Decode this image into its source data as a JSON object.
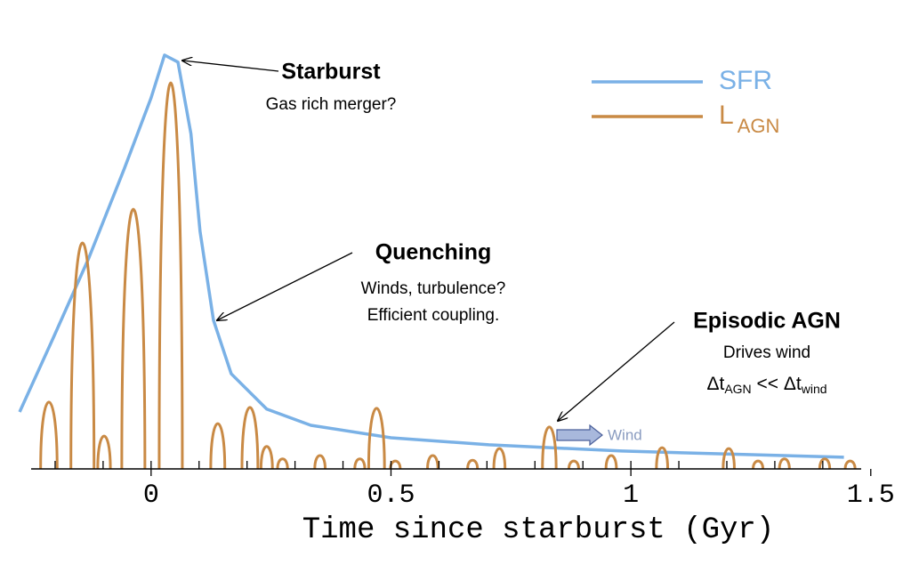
{
  "chart_data": {
    "type": "line",
    "xlabel": "Time since starburst (Gyr)",
    "xlim": [
      -0.25,
      1.48
    ],
    "ylim": [
      0,
      1
    ],
    "xticks": [
      0,
      0.5,
      1,
      1.5
    ],
    "xminor_ticks": [
      -0.2,
      -0.1,
      0,
      0.1,
      0.2,
      0.3,
      0.4,
      0.5,
      0.6,
      0.7,
      0.8,
      0.9,
      1,
      1.1,
      1.2,
      1.3,
      1.4
    ],
    "series": [
      {
        "name": "SFR",
        "color": "#7ab1e6",
        "x": [
          -0.274,
          -0.204,
          -0.13,
          -0.056,
          0,
          0.028,
          0.056,
          0.083,
          0.102,
          0.13,
          0.167,
          0.241,
          0.333,
          0.5,
          0.704,
          0.981,
          1.444
        ],
        "values": [
          0.137,
          0.315,
          0.507,
          0.722,
          0.893,
          0.996,
          0.979,
          0.807,
          0.572,
          0.358,
          0.229,
          0.144,
          0.105,
          0.075,
          0.058,
          0.043,
          0.028
        ]
      },
      {
        "name": "L",
        "name_sub": "AGN",
        "color": "#c98a45",
        "style": "spikes",
        "x": [
          -0.213,
          -0.143,
          -0.098,
          -0.037,
          0.041,
          0.139,
          0.206,
          0.241,
          0.274,
          0.352,
          0.435,
          0.47,
          0.509,
          0.587,
          0.67,
          0.726,
          0.83,
          0.881,
          0.959,
          1.065,
          1.204,
          1.265,
          1.32,
          1.404,
          1.457
        ],
        "values": [
          0.161,
          0.544,
          0.079,
          0.625,
          0.929,
          0.109,
          0.148,
          0.054,
          0.024,
          0.032,
          0.024,
          0.146,
          0.019,
          0.032,
          0.021,
          0.049,
          0.101,
          0.019,
          0.032,
          0.051,
          0.049,
          0.019,
          0.024,
          0.024,
          0.019
        ]
      }
    ],
    "annotations": {
      "starburst": {
        "title": "Starburst",
        "lines": [
          "Gas rich merger?"
        ]
      },
      "quenching": {
        "title": "Quenching",
        "lines": [
          "Winds, turbulence?",
          "Efficient coupling."
        ]
      },
      "episodic": {
        "title": "Episodic AGN",
        "lines": [
          "Drives wind"
        ],
        "formula": [
          "Δt",
          "AGN",
          " << Δt",
          "wind"
        ]
      },
      "wind": "Wind"
    }
  }
}
